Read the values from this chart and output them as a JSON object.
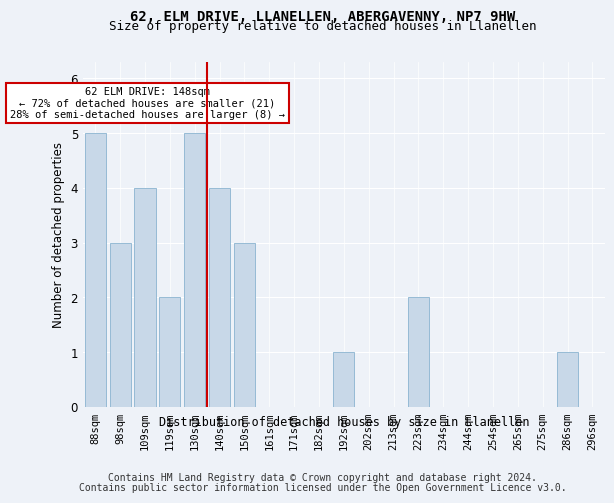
{
  "title_line1": "62, ELM DRIVE, LLANELLEN, ABERGAVENNY, NP7 9HW",
  "title_line2": "Size of property relative to detached houses in Llanellen",
  "xlabel": "Distribution of detached houses by size in Llanellen",
  "ylabel": "Number of detached properties",
  "footer_line1": "Contains HM Land Registry data © Crown copyright and database right 2024.",
  "footer_line2": "Contains public sector information licensed under the Open Government Licence v3.0.",
  "categories": [
    "88sqm",
    "98sqm",
    "109sqm",
    "119sqm",
    "130sqm",
    "140sqm",
    "150sqm",
    "161sqm",
    "171sqm",
    "182sqm",
    "192sqm",
    "202sqm",
    "213sqm",
    "223sqm",
    "234sqm",
    "244sqm",
    "254sqm",
    "265sqm",
    "275sqm",
    "286sqm",
    "296sqm"
  ],
  "values": [
    5,
    3,
    4,
    2,
    5,
    4,
    3,
    0,
    0,
    0,
    1,
    0,
    0,
    2,
    0,
    0,
    0,
    0,
    0,
    1,
    0
  ],
  "bar_color": "#c8d8e8",
  "bar_edge_color": "#8ab4d0",
  "vline_index": 4.5,
  "vline_color": "#cc0000",
  "annotation_text": "62 ELM DRIVE: 148sqm\n← 72% of detached houses are smaller (21)\n28% of semi-detached houses are larger (8) →",
  "annotation_box_color": "white",
  "annotation_box_edge": "#cc0000",
  "ylim": [
    0,
    6.3
  ],
  "yticks": [
    0,
    1,
    2,
    3,
    4,
    5,
    6
  ],
  "background_color": "#eef2f8",
  "grid_color": "white",
  "title_fontsize": 10,
  "subtitle_fontsize": 9,
  "axis_label_fontsize": 8.5,
  "tick_fontsize": 7.5,
  "footer_fontsize": 7,
  "ann_fontsize": 7.5
}
